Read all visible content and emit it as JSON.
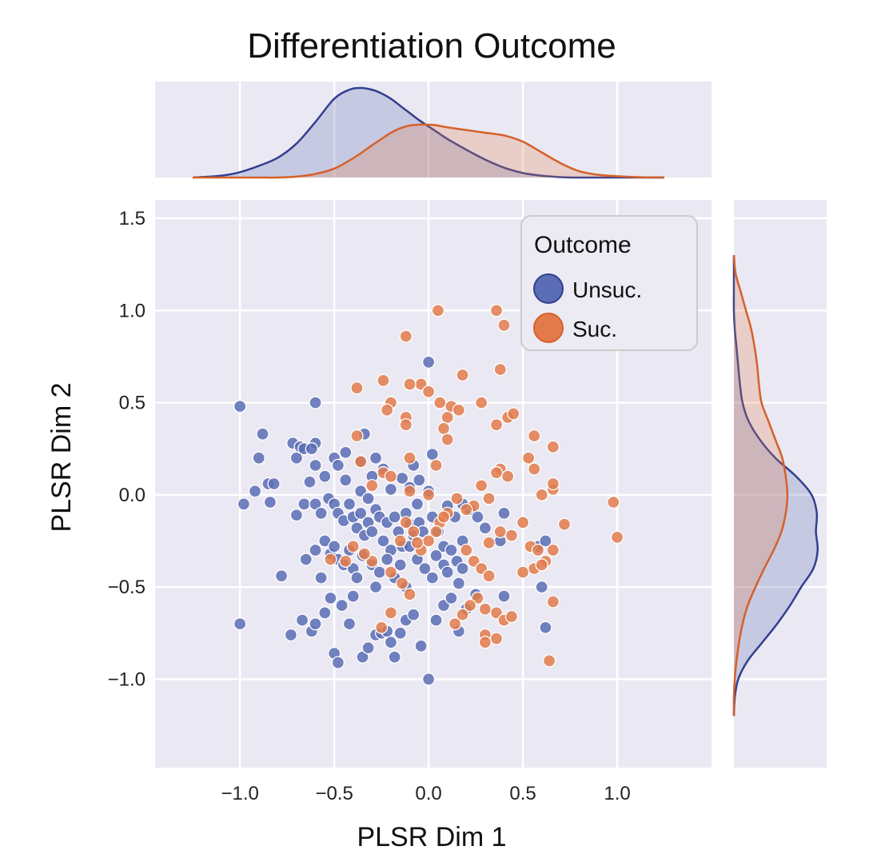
{
  "chart_data": {
    "type": "scatter",
    "title": "Differentiation Outcome",
    "xlabel": "PLSR Dim 1",
    "ylabel": "PLSR Dim 2",
    "xlim": [
      -1.45,
      1.5
    ],
    "ylim": [
      -1.48,
      1.6
    ],
    "xticks": [
      -1.0,
      -0.5,
      0.0,
      0.5,
      1.0
    ],
    "xtick_labels": [
      "−1.0",
      "−0.5",
      "0.0",
      "0.5",
      "1.0"
    ],
    "yticks": [
      1.5,
      1.0,
      0.5,
      0.0,
      -0.5,
      -1.0
    ],
    "ytick_labels": [
      "1.5",
      "1.0",
      "0.5",
      "0.0",
      "−0.5",
      "−1.0"
    ],
    "grid": true,
    "legend": {
      "title": "Outcome",
      "position": "top-right",
      "entries": [
        "Unsuc.",
        "Suc."
      ]
    },
    "colors": {
      "Unsuc.": "#5a6db5",
      "Suc.": "#e27b4c",
      "Unsuc_line": "#323f8f",
      "Suc_line": "#d5612a",
      "background": "#eae8f2",
      "grid": "#ffffff"
    },
    "series": [
      {
        "name": "Unsuc.",
        "points": [
          [
            -1.0,
            0.48
          ],
          [
            -0.6,
            0.5
          ],
          [
            -0.98,
            -0.05
          ],
          [
            -0.88,
            0.33
          ],
          [
            -0.9,
            0.2
          ],
          [
            -0.92,
            0.02
          ],
          [
            -0.85,
            0.06
          ],
          [
            -0.82,
            0.06
          ],
          [
            -0.84,
            -0.04
          ],
          [
            -0.72,
            0.28
          ],
          [
            -0.7,
            0.2
          ],
          [
            -0.68,
            0.26
          ],
          [
            -0.66,
            0.25
          ],
          [
            -0.6,
            0.28
          ],
          [
            -0.62,
            0.25
          ],
          [
            -0.6,
            0.16
          ],
          [
            -0.7,
            -0.11
          ],
          [
            -0.66,
            -0.05
          ],
          [
            -0.63,
            0.07
          ],
          [
            -0.55,
            0.1
          ],
          [
            -0.5,
            0.2
          ],
          [
            -0.48,
            0.16
          ],
          [
            -0.44,
            0.23
          ],
          [
            -0.6,
            -0.05
          ],
          [
            -0.57,
            -0.1
          ],
          [
            -0.53,
            -0.02
          ],
          [
            -0.5,
            -0.05
          ],
          [
            -0.48,
            -0.1
          ],
          [
            -0.45,
            -0.14
          ],
          [
            -0.42,
            -0.05
          ],
          [
            -0.4,
            -0.12
          ],
          [
            -0.38,
            -0.18
          ],
          [
            -0.36,
            -0.1
          ],
          [
            -0.34,
            -0.22
          ],
          [
            -0.32,
            -0.15
          ],
          [
            -0.3,
            -0.2
          ],
          [
            -0.28,
            -0.08
          ],
          [
            -0.26,
            -0.12
          ],
          [
            -0.24,
            -0.25
          ],
          [
            -0.22,
            -0.15
          ],
          [
            -0.2,
            -0.3
          ],
          [
            -0.18,
            -0.12
          ],
          [
            -0.16,
            -0.2
          ],
          [
            -0.14,
            -0.28
          ],
          [
            -0.12,
            -0.1
          ],
          [
            -0.1,
            -0.16
          ],
          [
            -0.08,
            -0.22
          ],
          [
            -0.06,
            -0.05
          ],
          [
            -0.05,
            -0.15
          ],
          [
            -0.03,
            -0.2
          ],
          [
            0.0,
            0.02
          ],
          [
            0.02,
            -0.12
          ],
          [
            0.05,
            -0.2
          ],
          [
            0.08,
            -0.28
          ],
          [
            -0.34,
            0.33
          ],
          [
            -0.36,
            0.18
          ],
          [
            -0.3,
            0.1
          ],
          [
            -0.28,
            0.2
          ],
          [
            -0.24,
            0.14
          ],
          [
            -0.2,
            0.03
          ],
          [
            -0.14,
            0.09
          ],
          [
            -0.1,
            0.04
          ],
          [
            -0.08,
            0.16
          ],
          [
            0.0,
            0.72
          ],
          [
            0.02,
            0.22
          ],
          [
            -0.05,
            0.08
          ],
          [
            -0.6,
            -0.3
          ],
          [
            -0.55,
            -0.25
          ],
          [
            -0.52,
            -0.32
          ],
          [
            -0.5,
            -0.28
          ],
          [
            -0.48,
            -0.35
          ],
          [
            -0.45,
            -0.38
          ],
          [
            -0.42,
            -0.3
          ],
          [
            -0.4,
            -0.4
          ],
          [
            -0.38,
            -0.45
          ],
          [
            -0.35,
            -0.33
          ],
          [
            -0.3,
            -0.38
          ],
          [
            -0.26,
            -0.42
          ],
          [
            -0.22,
            -0.35
          ],
          [
            -0.18,
            -0.45
          ],
          [
            -0.15,
            -0.38
          ],
          [
            -0.12,
            -0.5
          ],
          [
            -0.1,
            -0.28
          ],
          [
            -0.06,
            -0.35
          ],
          [
            -0.02,
            -0.4
          ],
          [
            0.02,
            -0.45
          ],
          [
            0.04,
            -0.33
          ],
          [
            0.08,
            -0.38
          ],
          [
            0.1,
            -0.42
          ],
          [
            0.12,
            -0.3
          ],
          [
            0.15,
            -0.36
          ],
          [
            0.16,
            -0.48
          ],
          [
            0.18,
            -0.25
          ],
          [
            -0.78,
            -0.44
          ],
          [
            -0.73,
            -0.76
          ],
          [
            -0.67,
            -0.68
          ],
          [
            -0.62,
            -0.74
          ],
          [
            -0.6,
            -0.7
          ],
          [
            -0.55,
            -0.64
          ],
          [
            -0.52,
            -0.56
          ],
          [
            -0.5,
            -0.86
          ],
          [
            -0.48,
            -0.91
          ],
          [
            -0.46,
            -0.6
          ],
          [
            -0.42,
            -0.7
          ],
          [
            -0.4,
            -0.55
          ],
          [
            -0.35,
            -0.88
          ],
          [
            -0.32,
            -0.83
          ],
          [
            -0.28,
            -0.76
          ],
          [
            -0.25,
            -0.75
          ],
          [
            -0.22,
            -0.74
          ],
          [
            -0.2,
            -0.8
          ],
          [
            -0.18,
            -0.88
          ],
          [
            -0.15,
            -0.75
          ],
          [
            -0.12,
            -0.68
          ],
          [
            -0.08,
            -0.65
          ],
          [
            -0.04,
            -0.82
          ],
          [
            0.0,
            -1.0
          ],
          [
            0.04,
            -0.68
          ],
          [
            0.08,
            -0.6
          ],
          [
            0.12,
            -0.56
          ],
          [
            0.16,
            -0.74
          ],
          [
            0.2,
            -0.62
          ],
          [
            0.25,
            -0.54
          ],
          [
            -1.0,
            -0.7
          ],
          [
            -0.65,
            -0.35
          ],
          [
            -0.57,
            -0.45
          ],
          [
            0.4,
            -0.1
          ],
          [
            0.4,
            -0.55
          ],
          [
            0.38,
            -0.25
          ],
          [
            0.62,
            -0.72
          ],
          [
            0.58,
            -0.28
          ],
          [
            0.6,
            -0.5
          ],
          [
            0.22,
            -0.08
          ],
          [
            0.26,
            -0.12
          ],
          [
            0.3,
            -0.18
          ],
          [
            0.18,
            -0.05
          ],
          [
            0.14,
            -0.12
          ],
          [
            0.1,
            -0.06
          ],
          [
            0.62,
            -0.25
          ],
          [
            0.18,
            -0.4
          ],
          [
            -0.28,
            -0.5
          ],
          [
            -0.44,
            0.08
          ],
          [
            -0.36,
            0.02
          ],
          [
            -0.32,
            -0.02
          ]
        ]
      },
      {
        "name": "Suc.",
        "points": [
          [
            0.05,
            1.0
          ],
          [
            0.36,
            1.0
          ],
          [
            0.4,
            0.92
          ],
          [
            -0.12,
            0.86
          ],
          [
            0.38,
            0.68
          ],
          [
            0.18,
            0.65
          ],
          [
            -0.38,
            0.58
          ],
          [
            -0.24,
            0.62
          ],
          [
            -0.04,
            0.6
          ],
          [
            -0.1,
            0.6
          ],
          [
            0.0,
            0.56
          ],
          [
            -0.2,
            0.5
          ],
          [
            -0.22,
            0.46
          ],
          [
            -0.12,
            0.42
          ],
          [
            -0.12,
            0.38
          ],
          [
            0.06,
            0.5
          ],
          [
            0.12,
            0.48
          ],
          [
            0.16,
            0.46
          ],
          [
            0.28,
            0.5
          ],
          [
            0.36,
            0.38
          ],
          [
            0.42,
            0.42
          ],
          [
            0.45,
            0.44
          ],
          [
            0.1,
            0.42
          ],
          [
            0.08,
            0.36
          ],
          [
            0.1,
            0.3
          ],
          [
            -0.38,
            0.32
          ],
          [
            -0.36,
            0.18
          ],
          [
            -0.24,
            0.12
          ],
          [
            -0.2,
            0.1
          ],
          [
            -0.1,
            0.2
          ],
          [
            0.04,
            0.16
          ],
          [
            0.56,
            0.32
          ],
          [
            0.66,
            0.26
          ],
          [
            0.53,
            0.2
          ],
          [
            0.38,
            0.14
          ],
          [
            0.36,
            0.12
          ],
          [
            0.42,
            0.1
          ],
          [
            0.56,
            0.14
          ],
          [
            0.32,
            -0.02
          ],
          [
            0.28,
            0.05
          ],
          [
            0.6,
            0.0
          ],
          [
            0.66,
            0.03
          ],
          [
            0.66,
            0.06
          ],
          [
            0.24,
            -0.06
          ],
          [
            0.2,
            -0.08
          ],
          [
            0.15,
            -0.02
          ],
          [
            0.1,
            -0.1
          ],
          [
            0.06,
            -0.15
          ],
          [
            0.04,
            -0.2
          ],
          [
            0.0,
            -0.25
          ],
          [
            -0.04,
            -0.3
          ],
          [
            -0.08,
            -0.2
          ],
          [
            -0.12,
            -0.15
          ],
          [
            -0.15,
            -0.25
          ],
          [
            0.32,
            -0.26
          ],
          [
            0.38,
            -0.2
          ],
          [
            0.44,
            -0.22
          ],
          [
            0.5,
            -0.15
          ],
          [
            0.54,
            -0.28
          ],
          [
            0.58,
            -0.3
          ],
          [
            0.62,
            -0.36
          ],
          [
            0.66,
            -0.3
          ],
          [
            0.72,
            -0.16
          ],
          [
            0.98,
            -0.04
          ],
          [
            1.0,
            -0.23
          ],
          [
            0.2,
            -0.3
          ],
          [
            0.24,
            -0.36
          ],
          [
            0.28,
            -0.4
          ],
          [
            0.32,
            -0.44
          ],
          [
            0.26,
            -0.56
          ],
          [
            0.22,
            -0.6
          ],
          [
            0.3,
            -0.62
          ],
          [
            0.18,
            -0.65
          ],
          [
            0.14,
            -0.7
          ],
          [
            0.3,
            -0.76
          ],
          [
            0.36,
            -0.64
          ],
          [
            0.4,
            -0.68
          ],
          [
            0.44,
            -0.66
          ],
          [
            0.5,
            -0.42
          ],
          [
            0.56,
            -0.4
          ],
          [
            0.6,
            -0.38
          ],
          [
            0.66,
            -0.58
          ],
          [
            0.64,
            -0.9
          ],
          [
            0.3,
            -0.8
          ],
          [
            0.36,
            -0.78
          ],
          [
            -0.1,
            -0.54
          ],
          [
            -0.14,
            -0.48
          ],
          [
            -0.2,
            -0.42
          ],
          [
            -0.3,
            -0.36
          ],
          [
            -0.34,
            -0.32
          ],
          [
            -0.44,
            -0.36
          ],
          [
            -0.4,
            -0.28
          ],
          [
            -0.2,
            -0.64
          ],
          [
            -0.25,
            -0.72
          ],
          [
            -0.06,
            -0.26
          ],
          [
            0.08,
            -0.12
          ],
          [
            -0.52,
            -0.35
          ],
          [
            -0.1,
            0.02
          ],
          [
            -0.3,
            0.05
          ],
          [
            0.0,
            0.0
          ]
        ]
      }
    ],
    "marginal_x": {
      "type": "kde",
      "x": [
        -1.25,
        -1.1,
        -1.0,
        -0.9,
        -0.8,
        -0.7,
        -0.6,
        -0.5,
        -0.42,
        -0.36,
        -0.3,
        -0.25,
        -0.2,
        -0.15,
        -0.1,
        -0.05,
        0.0,
        0.05,
        0.1,
        0.2,
        0.3,
        0.4,
        0.5,
        0.6,
        0.7,
        0.8,
        0.9,
        1.0,
        1.1,
        1.2,
        1.25
      ],
      "Unsuc.": [
        0.0,
        0.02,
        0.06,
        0.13,
        0.22,
        0.38,
        0.62,
        0.88,
        0.98,
        1.0,
        0.98,
        0.94,
        0.88,
        0.8,
        0.72,
        0.64,
        0.57,
        0.5,
        0.43,
        0.31,
        0.2,
        0.11,
        0.05,
        0.02,
        0.005,
        0.0,
        0.0,
        0.0,
        0.0,
        0.0,
        0.0
      ],
      "Suc.": [
        0.0,
        0.0,
        0.0,
        0.0,
        0.0,
        0.01,
        0.04,
        0.1,
        0.19,
        0.27,
        0.36,
        0.43,
        0.5,
        0.55,
        0.58,
        0.59,
        0.59,
        0.58,
        0.56,
        0.53,
        0.5,
        0.47,
        0.4,
        0.28,
        0.16,
        0.07,
        0.03,
        0.015,
        0.005,
        0.0,
        0.0
      ]
    },
    "marginal_y": {
      "type": "kde",
      "y": [
        1.3,
        1.2,
        1.1,
        1.0,
        0.9,
        0.8,
        0.7,
        0.6,
        0.5,
        0.4,
        0.3,
        0.2,
        0.1,
        0.0,
        -0.1,
        -0.2,
        -0.3,
        -0.4,
        -0.5,
        -0.6,
        -0.7,
        -0.8,
        -0.9,
        -1.0,
        -1.1,
        -1.2
      ],
      "Unsuc.": [
        0.0,
        0.0,
        0.0,
        0.0,
        0.01,
        0.03,
        0.05,
        0.07,
        0.1,
        0.17,
        0.3,
        0.48,
        0.72,
        0.9,
        0.96,
        0.95,
        0.97,
        0.92,
        0.78,
        0.65,
        0.5,
        0.33,
        0.16,
        0.05,
        0.01,
        0.0
      ],
      "Suc.": [
        0.0,
        0.02,
        0.08,
        0.14,
        0.2,
        0.24,
        0.27,
        0.29,
        0.32,
        0.4,
        0.48,
        0.56,
        0.6,
        0.62,
        0.6,
        0.55,
        0.46,
        0.35,
        0.25,
        0.16,
        0.1,
        0.06,
        0.03,
        0.01,
        0.0,
        0.0
      ]
    }
  }
}
